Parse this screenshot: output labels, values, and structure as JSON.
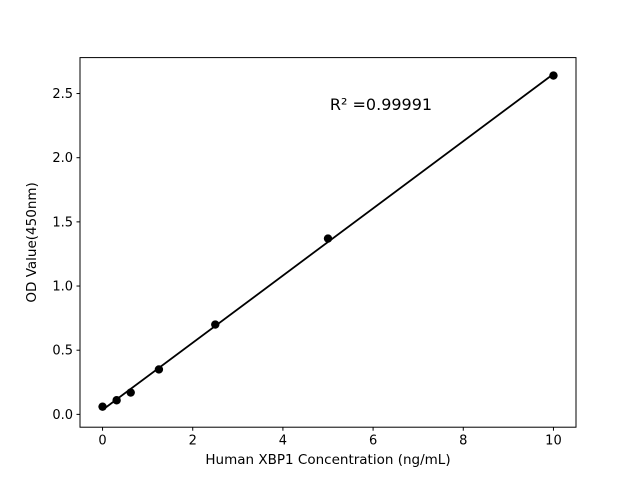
{
  "window": {
    "background": "#ffffff"
  },
  "chart_data": {
    "type": "scatter",
    "title": "",
    "xlabel": "Human XBP1 Concentration (ng/mL)",
    "ylabel": "OD Value(450nm)",
    "series": [
      {
        "name": "standard-points",
        "x": [
          0,
          0.3125,
          0.625,
          1.25,
          2.5,
          5,
          10
        ],
        "y": [
          0.06,
          0.11,
          0.17,
          0.35,
          0.7,
          1.37,
          2.64
        ]
      }
    ],
    "fit_line": {
      "x": [
        0,
        10
      ],
      "y": [
        0.035,
        2.652
      ]
    },
    "annotation": {
      "text": "R² =0.99991",
      "r_squared": 0.99991
    },
    "xlim": [
      -0.5,
      10.5
    ],
    "ylim": [
      -0.1,
      2.78
    ],
    "xticks": [
      0,
      2,
      4,
      6,
      8,
      10
    ],
    "yticks": [
      0,
      0.5,
      1,
      1.5,
      2,
      2.5
    ],
    "grid": false,
    "legend": null,
    "marker_color": "#000000",
    "line_color": "#000000",
    "axis_color": "#000000"
  }
}
